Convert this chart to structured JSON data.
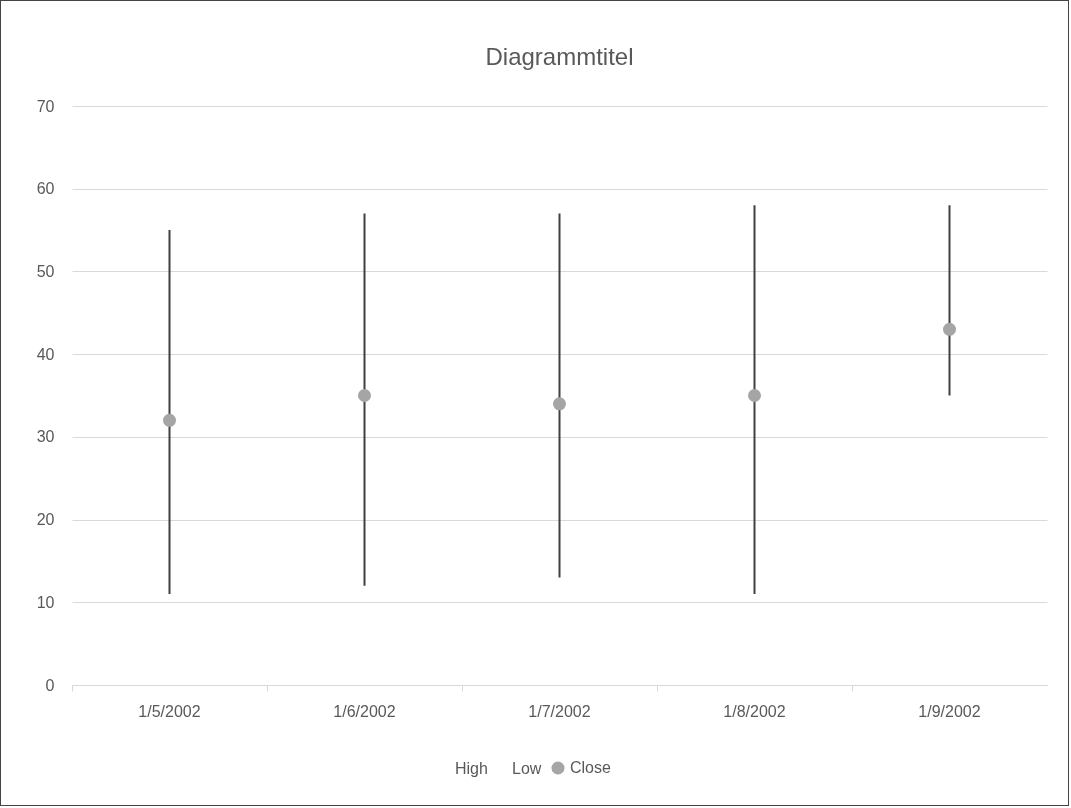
{
  "chart_data": {
    "type": "scatter",
    "title": "Diagrammtitel",
    "categories": [
      "1/5/2002",
      "1/6/2002",
      "1/7/2002",
      "1/8/2002",
      "1/9/2002"
    ],
    "series": [
      {
        "name": "Close",
        "color": "#a5a5a5",
        "values": [
          32,
          35,
          34,
          35,
          43
        ],
        "errors": [
          [
            11,
            55
          ],
          [
            12,
            57
          ],
          [
            13,
            57
          ],
          [
            11,
            58
          ],
          [
            35,
            58
          ]
        ]
      }
    ],
    "annotations": [
      "High",
      "Low"
    ],
    "ylim": [
      0,
      70
    ],
    "yticks": [
      0,
      10,
      20,
      30,
      40,
      50,
      60,
      70
    ],
    "grid": "y",
    "legend": "bottom",
    "marker": "circle"
  }
}
